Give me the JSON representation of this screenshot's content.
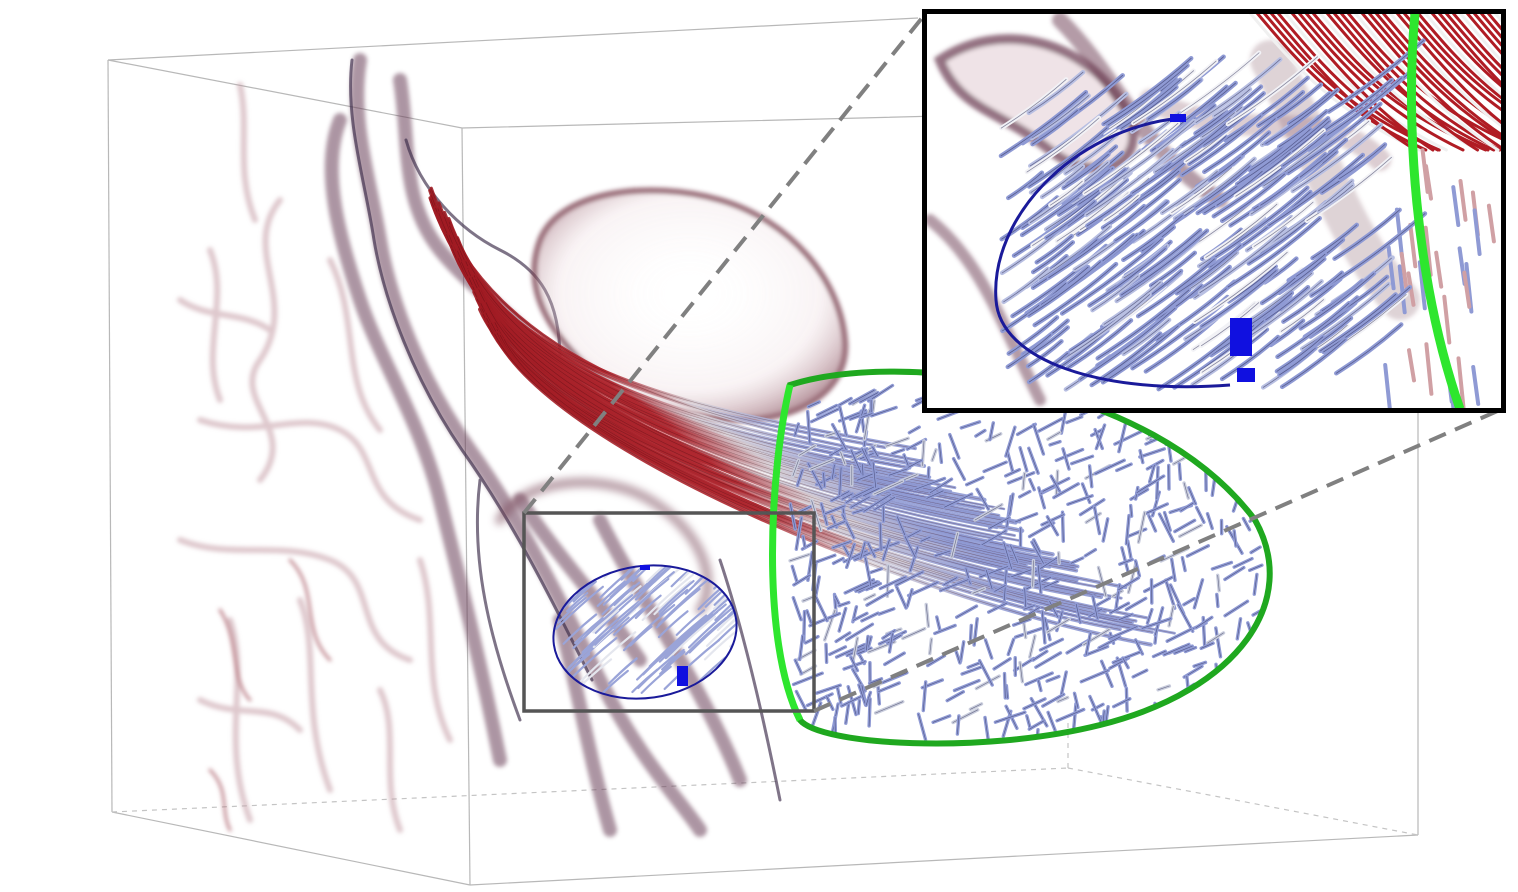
{
  "figure": {
    "description_visible_text": [],
    "colors": {
      "background": "#ffffff",
      "vessel": "#7a3a4a",
      "vessel_dark": "#3a2a48",
      "streamline_red": "#a01a22",
      "streamline_blue": "#8f9ad4",
      "green_ellipse": "#1fa81f",
      "green_ellipse_inset": "#2ee62e",
      "blue_ellipse": "#1a1a9a",
      "seed_marker": "#1010e0",
      "box_edges": "#b8b8b8",
      "zoom_box": "#555555",
      "inset_frame": "#000000",
      "leader_lines": "#808080"
    },
    "elements": {
      "volume_box": "bounding-box",
      "vessels": "vascular-volume-rendering",
      "red_bundle": "streamline-bundle-arterial",
      "blue_bundle": "streamline-bundle-venous",
      "zoom_inset": "magnified-view"
    }
  }
}
